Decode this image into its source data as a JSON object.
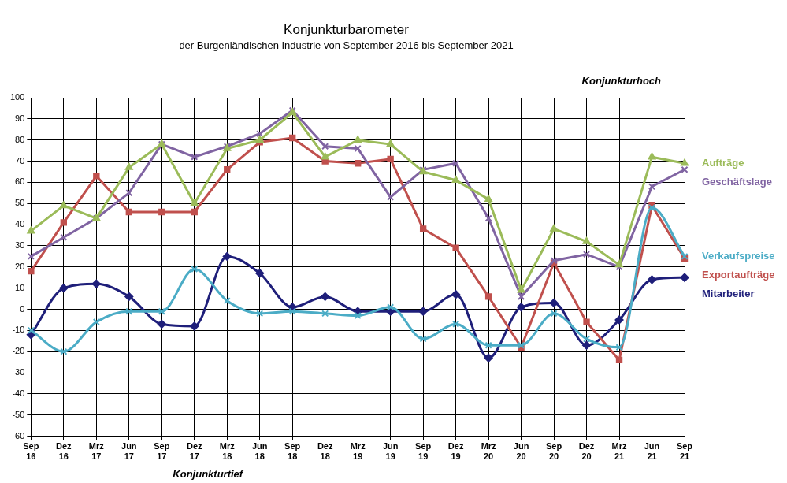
{
  "chart_data": {
    "type": "line",
    "title": "Konjunkturbarometer",
    "subtitle": "der Burgenländischen Industrie von September 2016 bis September 2021",
    "annotations": [
      "Konjunkturhoch",
      "Konjunkturtief"
    ],
    "categories": [
      "Sep 16",
      "Dez 16",
      "Mrz 17",
      "Jun 17",
      "Sep 17",
      "Dez 17",
      "Mrz 18",
      "Jun 18",
      "Sep 18",
      "Dez 18",
      "Mrz 19",
      "Jun 19",
      "Sep 19",
      "Dez 19",
      "Mrz 20",
      "Jun 20",
      "Sep 20",
      "Dez 20",
      "Mrz 21",
      "Jun 21",
      "Sep 21"
    ],
    "series": [
      {
        "name": "Aufträge",
        "color": "#9bbb59",
        "marker": "triangle",
        "line_style": "solid",
        "values": [
          37,
          49,
          43,
          67,
          78,
          50,
          76,
          80,
          93,
          72,
          80,
          78,
          65,
          61,
          52,
          9,
          38,
          32,
          21,
          72,
          69
        ]
      },
      {
        "name": "Geschäftslage",
        "color": "#8064a2",
        "marker": "x",
        "line_style": "solid",
        "values": [
          25,
          34,
          43,
          55,
          78,
          72,
          77,
          83,
          94,
          77,
          76,
          53,
          66,
          69,
          43,
          6,
          23,
          26,
          20,
          58,
          66
        ]
      },
      {
        "name": "Verkaufspreise",
        "color": "#4bacc6",
        "marker": "x",
        "line_style": "smooth",
        "values": [
          -10,
          -20,
          -6,
          -1,
          -1,
          19,
          4,
          -2,
          -1,
          -2,
          -3,
          1,
          -14,
          -7,
          -17,
          -17,
          -2,
          -14,
          -18,
          48,
          25
        ]
      },
      {
        "name": "Exportaufträge",
        "color": "#c0504d",
        "marker": "square",
        "line_style": "solid",
        "values": [
          18,
          41,
          63,
          46,
          46,
          46,
          66,
          79,
          81,
          70,
          69,
          71,
          38,
          29,
          6,
          -18,
          22,
          -6,
          -24,
          49,
          24
        ]
      },
      {
        "name": "Mitarbeiter",
        "color": "#1f1f7a",
        "marker": "diamond",
        "line_style": "smooth",
        "values": [
          -12,
          10,
          12,
          6,
          -7,
          -8,
          25,
          17,
          1,
          6,
          -1,
          -1,
          -1,
          7,
          -23,
          1,
          3,
          -17,
          -5,
          14,
          15
        ]
      }
    ],
    "ylim": [
      -60,
      100
    ],
    "yticks": [
      -60,
      -50,
      -40,
      -30,
      -20,
      -10,
      0,
      10,
      20,
      30,
      40,
      50,
      60,
      70,
      80,
      90,
      100
    ],
    "grid": true,
    "legend": "right"
  }
}
